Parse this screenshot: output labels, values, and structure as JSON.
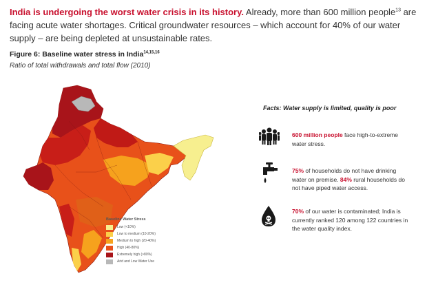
{
  "intro": {
    "lead": "India is undergoing the worst water crisis in its history.",
    "part1": " Already, more than 600 million people",
    "sup1": "13",
    "part2": " are facing acute water shortages. Critical groundwater resources – which account for 40% of our water supply – are being depleted at unsustainable rates."
  },
  "figure": {
    "title": "Figure 6: Baseline water stress in India",
    "title_sup": "14,15,16",
    "subtitle": "Ratio of total withdrawals and total flow (2010)"
  },
  "map": {
    "legend_title": "Baseline Water Stress",
    "legend": [
      {
        "label": "Low (<10%)",
        "color": "#f7ef8f"
      },
      {
        "label": "Low to medium (10-20%)",
        "color": "#fbd04a"
      },
      {
        "label": "Medium to high (20-40%)",
        "color": "#f6a21d"
      },
      {
        "label": "High (40-80%)",
        "color": "#e8511a"
      },
      {
        "label": "Extremely high (>80%)",
        "color": "#a8141a"
      },
      {
        "label": "Arid and Low Water Use",
        "color": "#b8b8b8"
      }
    ]
  },
  "facts": {
    "title": "Facts: Water supply is limited, quality is poor",
    "items": [
      {
        "icon": "people-icon",
        "highlight": "600 million people",
        "text": " face high-to-extreme water stress."
      },
      {
        "icon": "tap-icon",
        "highlight": "75%",
        "text": " of households do not have drinking water on premise. ",
        "highlight2": "84%",
        "text2": " rural households do not have piped water access."
      },
      {
        "icon": "poison-drop-icon",
        "highlight": "70%",
        "text": " of our water is contaminated; India is currently ranked 120 among 122 countries in the water quality index."
      }
    ]
  }
}
